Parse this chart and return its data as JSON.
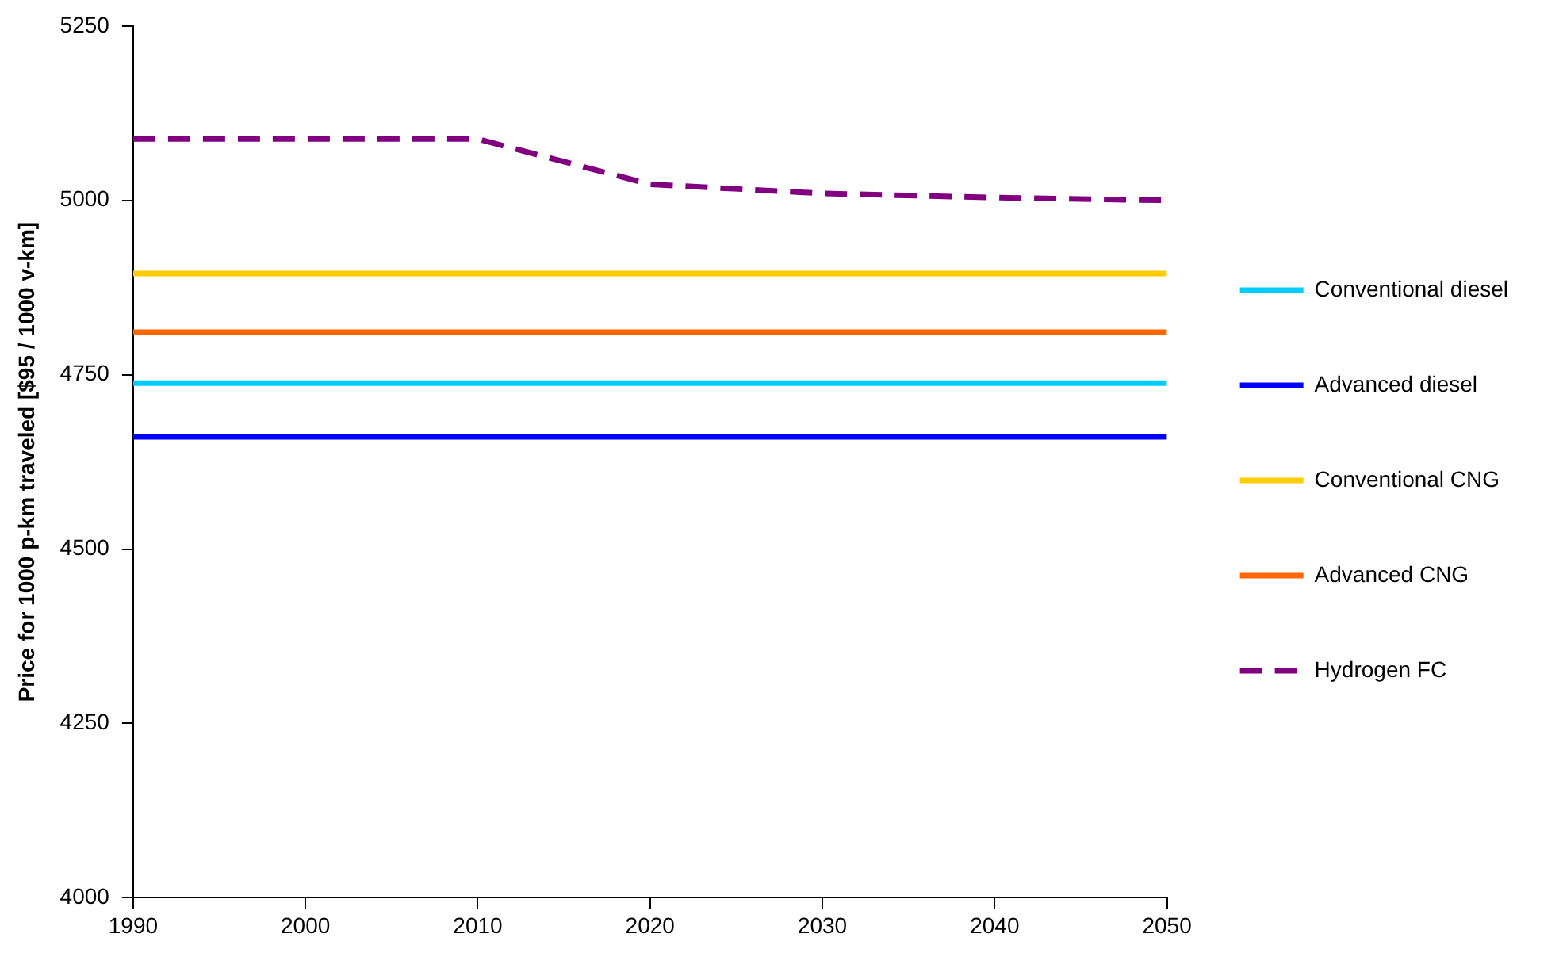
{
  "chart_data": {
    "type": "line",
    "ylabel": "Price for 1000 p-km traveled [$95 / 1000 v-km]",
    "x": [
      1990,
      2000,
      2010,
      2020,
      2030,
      2040,
      2050
    ],
    "xlim": [
      1990,
      2050
    ],
    "xticks": [
      1990,
      2000,
      2010,
      2020,
      2030,
      2040,
      2050
    ],
    "ylim": [
      4000,
      5250
    ],
    "yticks": [
      4000,
      4250,
      4500,
      4750,
      5000,
      5250
    ],
    "grid": false,
    "legend": "right",
    "marker": "none",
    "series": [
      {
        "name": "Conventional diesel",
        "color": "#00ccff",
        "line_style": "solid",
        "values": [
          4738,
          4738,
          4738,
          4738,
          4738,
          4738,
          4738
        ]
      },
      {
        "name": "Advanced diesel",
        "color": "#0000ff",
        "line_style": "solid",
        "values": [
          4661,
          4661,
          4661,
          4661,
          4661,
          4661,
          4661
        ]
      },
      {
        "name": "Conventional CNG",
        "color": "#ffcc00",
        "line_style": "solid",
        "values": [
          4895,
          4895,
          4895,
          4895,
          4895,
          4895,
          4895
        ]
      },
      {
        "name": "Advanced CNG",
        "color": "#ff6600",
        "line_style": "solid",
        "values": [
          4811,
          4811,
          4811,
          4811,
          4811,
          4811,
          4811
        ]
      },
      {
        "name": "Hydrogen FC",
        "color": "#800080",
        "line_style": "dashed",
        "values": [
          5088,
          5088,
          5088,
          5023,
          5010,
          5004,
          5000
        ]
      }
    ]
  }
}
